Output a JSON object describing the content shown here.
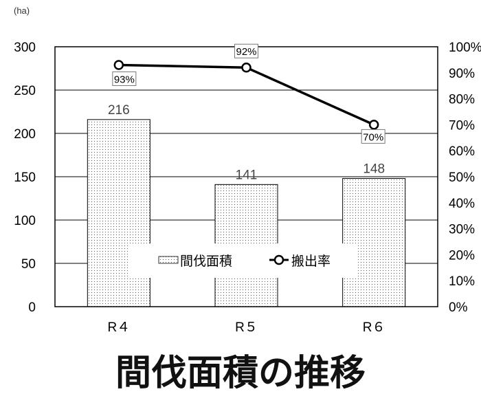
{
  "chart_data": {
    "type": "bar+line",
    "title": "間伐面積の推移",
    "categories": [
      "R４",
      "R５",
      "R６"
    ],
    "y_left": {
      "unit_label": "(ha)",
      "range": [
        0,
        300
      ],
      "ticks": [
        "0",
        "50",
        "100",
        "150",
        "200",
        "250",
        "300"
      ]
    },
    "y_right": {
      "range": [
        0,
        100
      ],
      "ticks": [
        "0%",
        "10%",
        "20%",
        "30%",
        "40%",
        "50%",
        "60%",
        "70%",
        "80%",
        "90%",
        "100%"
      ]
    },
    "series": [
      {
        "name": "間伐面積",
        "type": "bar",
        "axis": "left",
        "values": [
          216,
          141,
          148
        ],
        "labels": [
          "216",
          "141",
          "148"
        ],
        "fill": "dotted"
      },
      {
        "name": "搬出率",
        "type": "line",
        "axis": "right",
        "values": [
          93,
          92,
          70
        ],
        "labels": [
          "93%",
          "92%",
          "70%"
        ],
        "color": "#000000"
      }
    ],
    "grid": true,
    "legend": "bottom-center inside plot"
  }
}
